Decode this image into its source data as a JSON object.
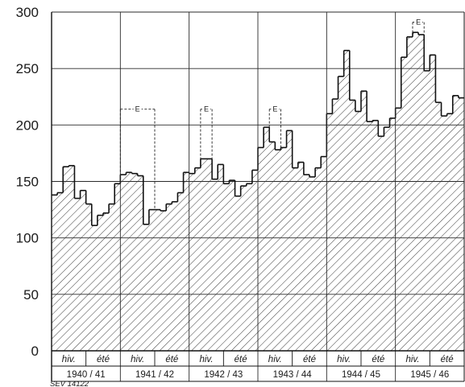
{
  "chart_data": {
    "type": "area",
    "title": "",
    "xlabel": "",
    "ylabel": "",
    "ylim": [
      0,
      300
    ],
    "yticks": [
      0,
      50,
      100,
      150,
      200,
      250,
      300
    ],
    "grid": true,
    "seasons": [
      "hiv.",
      "été"
    ],
    "years": [
      "1940 / 41",
      "1941 / 42",
      "1942 / 43",
      "1943 / 44",
      "1944 / 45",
      "1945 / 46"
    ],
    "monthly_values": [
      138,
      140,
      163,
      164,
      135,
      142,
      130,
      111,
      120,
      122,
      130,
      148,
      156,
      158,
      157,
      155,
      112,
      125,
      125,
      124,
      130,
      132,
      140,
      158,
      157,
      162,
      170,
      170,
      152,
      165,
      148,
      151,
      137,
      146,
      148,
      160,
      180,
      198,
      185,
      178,
      180,
      195,
      162,
      167,
      156,
      154,
      162,
      172,
      210,
      223,
      243,
      266,
      222,
      212,
      230,
      203,
      204,
      190,
      198,
      206,
      215,
      260,
      278,
      282,
      280,
      248,
      262,
      220,
      208,
      210,
      226,
      224
    ],
    "e_markers": [
      {
        "label": "E",
        "from_month": 12,
        "to_month": 18,
        "value": 214
      },
      {
        "label": "E",
        "from_month": 26,
        "to_month": 28,
        "value": 214
      },
      {
        "label": "E",
        "from_month": 38,
        "to_month": 40,
        "value": 214
      },
      {
        "label": "E",
        "from_month": 63,
        "to_month": 65,
        "value": 291
      }
    ],
    "figure_id": "SEV 14122"
  }
}
